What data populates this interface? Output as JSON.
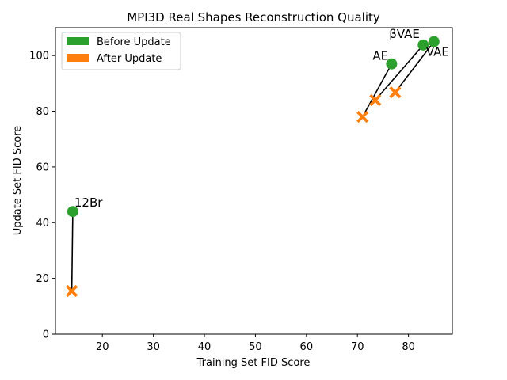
{
  "chart_data": {
    "type": "scatter",
    "title": "MPI3D Real Shapes Reconstruction Quality",
    "xlabel": "Training Set FID Score",
    "ylabel": "Update Set FID Score",
    "xlim": [
      10.8,
      88.6
    ],
    "ylim": [
      0,
      110
    ],
    "xticks": [
      20,
      30,
      40,
      50,
      60,
      70,
      80
    ],
    "yticks": [
      0,
      20,
      40,
      60,
      80,
      100
    ],
    "grid": false,
    "legend_position": "upper-left",
    "series": [
      {
        "name": "Before Update",
        "color": "#2ca02c",
        "marker": "circle"
      },
      {
        "name": "After Update",
        "color": "#ff7f0e",
        "marker": "x"
      }
    ],
    "models": [
      {
        "label": "12Br",
        "before": [
          14.2,
          44.0
        ],
        "after": [
          14.0,
          15.5
        ]
      },
      {
        "label": "AE",
        "before": [
          76.7,
          97.0
        ],
        "after": [
          71.0,
          78.0
        ]
      },
      {
        "label": "βVAE",
        "before": [
          82.9,
          103.8
        ],
        "after": [
          73.5,
          84.0
        ]
      },
      {
        "label": "VAE",
        "before": [
          85.0,
          105.0
        ],
        "after": [
          77.4,
          86.8
        ]
      }
    ]
  }
}
